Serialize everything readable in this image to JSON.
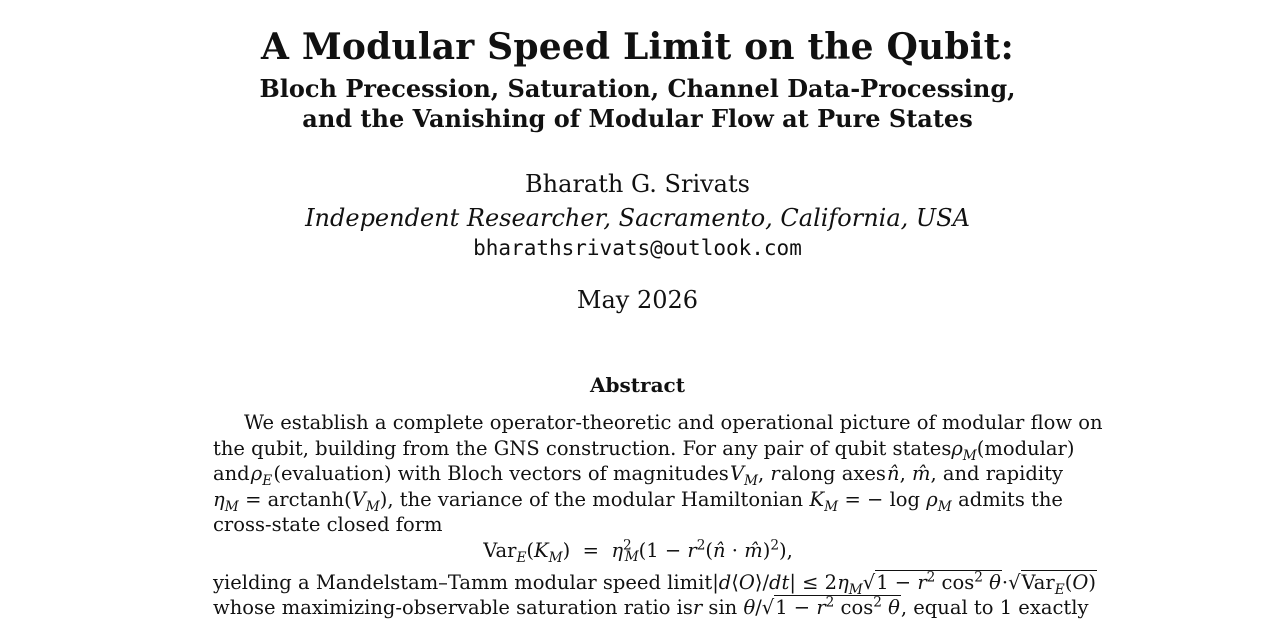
{
  "paper": {
    "title": "A Modular Speed Limit on the Qubit:",
    "subtitle_line1": "Bloch Precession, Saturation, Channel Data-Processing,",
    "subtitle_line2": "and the Vanishing of Modular Flow at Pure States",
    "author": "Bharath G. Srivats",
    "affiliation": "Independent Researcher, Sacramento, California, USA",
    "email": "bharathsrivats@outlook.com",
    "date": "May 2026"
  },
  "abstract": {
    "heading": "Abstract",
    "line1": "We establish a complete operator-theoretic and operational picture of modular flow on",
    "line2_a": "the qubit, building from the GNS construction. For any pair of qubit states",
    "line2_b": "(modular)",
    "line3_a": "and",
    "line3_b": "(evaluation) with Bloch vectors of magnitudes",
    "line3_c": "along axes",
    "line3_d": ", and rapidity",
    "line4_a": "= arctanh(",
    "line4_b": "), the variance of the modular Hamiltonian",
    "line4_c": "= − log",
    "line4_d": "admits the",
    "line5": "cross-state closed form",
    "equation": "Var_E(K_M) = η_M² (1 − r²(n̂ · m̂)²),",
    "line6_a": "yielding a Mandelstam–Tamm modular speed limit",
    "line7_a": "whose maximizing-observable saturation ratio is",
    "line7_b": ", equal to 1 exactly"
  }
}
